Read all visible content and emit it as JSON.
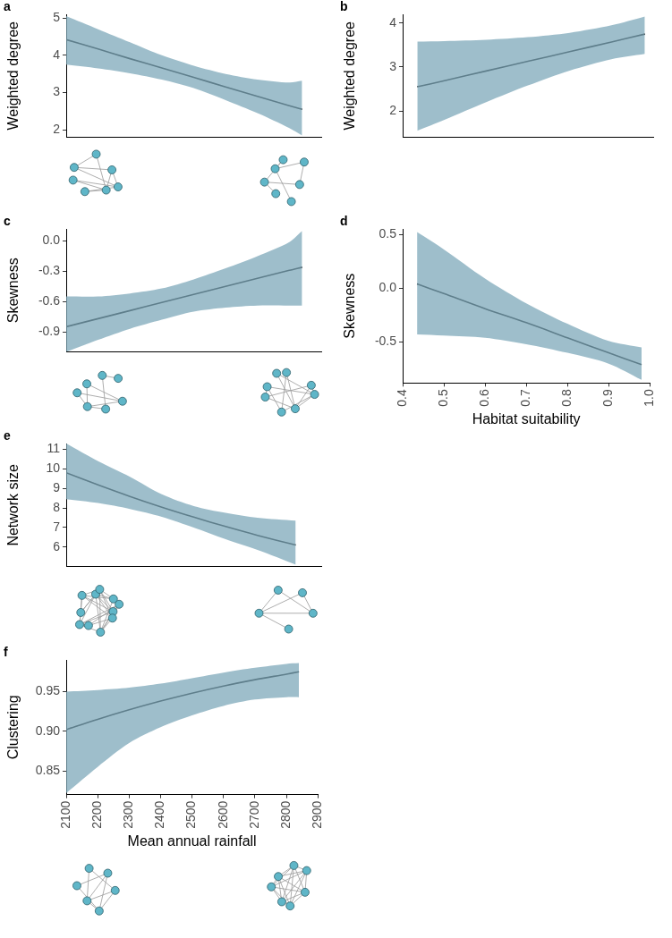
{
  "chart_data": [
    {
      "type": "line",
      "title": "a",
      "ylabel": "Weighted degree",
      "color": "#000000",
      "grid": false,
      "tick_labels": "y",
      "x": [
        2100,
        2200,
        2300,
        2400,
        2500,
        2600,
        2700,
        2800,
        2840
      ],
      "values": [
        4.42,
        4.17,
        3.91,
        3.66,
        3.41,
        3.15,
        2.9,
        2.65,
        2.55
      ],
      "lower": [
        3.75,
        3.65,
        3.52,
        3.35,
        3.12,
        2.8,
        2.45,
        2.05,
        1.85
      ],
      "upper": [
        5.05,
        4.7,
        4.35,
        4.0,
        3.72,
        3.5,
        3.35,
        3.27,
        3.32
      ],
      "xlim": [
        2100,
        2900
      ],
      "ylim": [
        1.8,
        5.1
      ],
      "yticks": [
        2,
        3,
        4,
        5
      ]
    },
    {
      "type": "line",
      "title": "b",
      "ylabel": "Weighted degree",
      "color": "#000000",
      "grid": false,
      "tick_labels": "y",
      "x": [
        0.435,
        0.5,
        0.6,
        0.7,
        0.8,
        0.9,
        0.98
      ],
      "values": [
        2.55,
        2.69,
        2.91,
        3.13,
        3.35,
        3.57,
        3.75
      ],
      "lower": [
        1.55,
        1.8,
        2.2,
        2.58,
        2.92,
        3.18,
        3.3
      ],
      "upper": [
        3.58,
        3.59,
        3.62,
        3.68,
        3.78,
        3.95,
        4.15
      ],
      "xlim": [
        0.4,
        1.0
      ],
      "ylim": [
        1.4,
        4.2
      ],
      "yticks": [
        2,
        3,
        4
      ]
    },
    {
      "type": "line",
      "title": "c",
      "ylabel": "Skewness",
      "color": "#000000",
      "grid": false,
      "tick_labels": "y",
      "x": [
        2100,
        2200,
        2300,
        2400,
        2500,
        2600,
        2700,
        2800,
        2840
      ],
      "values": [
        -0.85,
        -0.77,
        -0.69,
        -0.61,
        -0.53,
        -0.45,
        -0.37,
        -0.29,
        -0.26
      ],
      "lower": [
        -1.1,
        -0.98,
        -0.87,
        -0.78,
        -0.7,
        -0.66,
        -0.64,
        -0.64,
        -0.64
      ],
      "upper": [
        -0.55,
        -0.55,
        -0.52,
        -0.47,
        -0.38,
        -0.27,
        -0.15,
        -0.01,
        0.1
      ],
      "xlim": [
        2100,
        2900
      ],
      "ylim": [
        -1.1,
        0.12
      ],
      "yticks": [
        -0.9,
        -0.6,
        -0.3,
        {
          "value": 0,
          "label": "0.0"
        }
      ]
    },
    {
      "type": "line",
      "title": "d",
      "ylabel": "Skewness",
      "xlabel": "Habitat suitability",
      "color": "#000000",
      "grid": false,
      "x": [
        0.435,
        0.5,
        0.6,
        0.7,
        0.8,
        0.9,
        0.98
      ],
      "values": [
        0.04,
        -0.05,
        -0.19,
        -0.32,
        -0.46,
        -0.6,
        -0.71
      ],
      "lower": [
        -0.43,
        -0.44,
        -0.46,
        -0.52,
        -0.6,
        -0.7,
        -0.85
      ],
      "upper": [
        0.52,
        0.36,
        0.09,
        -0.14,
        -0.33,
        -0.49,
        -0.55
      ],
      "xlim": [
        0.4,
        1.0
      ],
      "xticks": [
        0.4,
        0.5,
        0.6,
        0.7,
        0.8,
        0.9,
        {
          "value": 1,
          "label": "1.0"
        }
      ],
      "ylim": [
        -0.88,
        0.55
      ],
      "yticks": [
        -0.5,
        {
          "value": 0,
          "label": "0.0"
        },
        0.5
      ]
    },
    {
      "type": "line",
      "title": "e",
      "ylabel": "Network size",
      "color": "#000000",
      "grid": false,
      "tick_labels": "y",
      "x": [
        2100,
        2200,
        2300,
        2400,
        2500,
        2600,
        2700,
        2820
      ],
      "values": [
        9.8,
        9.18,
        8.59,
        8.04,
        7.53,
        7.05,
        6.6,
        6.1
      ],
      "lower": [
        8.45,
        8.25,
        7.95,
        7.55,
        7.0,
        6.4,
        5.85,
        5.1
      ],
      "upper": [
        11.3,
        10.4,
        9.6,
        8.7,
        8.1,
        7.75,
        7.5,
        7.35
      ],
      "xlim": [
        2100,
        2900
      ],
      "ylim": [
        5,
        11.3
      ],
      "yticks": [
        6,
        7,
        8,
        9,
        10,
        11
      ]
    },
    {
      "type": "line",
      "title": "f",
      "ylabel": "Clustering",
      "xlabel": "Mean annual rainfall",
      "color": "#000000",
      "grid": false,
      "x": [
        2100,
        2200,
        2300,
        2400,
        2500,
        2600,
        2700,
        2800,
        2840
      ],
      "values": [
        0.902,
        0.915,
        0.927,
        0.938,
        0.948,
        0.957,
        0.965,
        0.972,
        0.975
      ],
      "lower": [
        0.822,
        0.855,
        0.885,
        0.905,
        0.92,
        0.932,
        0.94,
        0.943,
        0.943
      ],
      "upper": [
        0.95,
        0.952,
        0.955,
        0.96,
        0.967,
        0.974,
        0.98,
        0.985,
        0.986
      ],
      "xlim": [
        2100,
        2900
      ],
      "xticks": [
        2100,
        2200,
        2300,
        2400,
        2500,
        2600,
        2700,
        2800,
        2900
      ],
      "ylim": [
        0.82,
        0.99
      ],
      "yticks": [
        0.85,
        {
          "value": 0.9,
          "label": "0.90"
        },
        0.95
      ]
    }
  ]
}
